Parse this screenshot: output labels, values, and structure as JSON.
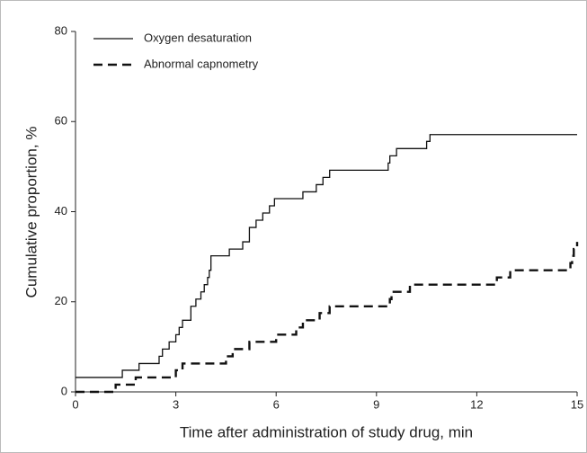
{
  "chart_data": {
    "type": "line",
    "step": "post",
    "xlabel": "Time after administration of study drug, min",
    "ylabel": "Cumulative proportion, %",
    "xlim": [
      0,
      15
    ],
    "ylim": [
      0,
      80
    ],
    "xticks": [
      0,
      3,
      6,
      9,
      12,
      15
    ],
    "yticks": [
      0,
      20,
      40,
      60,
      80
    ],
    "grid": false,
    "legend": "upper left",
    "series": [
      {
        "name": "Oxygen desaturation",
        "color": "#111111",
        "linestyle": "solid",
        "x": [
          0,
          1.4,
          1.9,
          2.5,
          2.6,
          2.8,
          3.0,
          3.1,
          3.2,
          3.45,
          3.6,
          3.75,
          3.85,
          3.95,
          4.0,
          4.05,
          4.6,
          5.0,
          5.2,
          5.4,
          5.6,
          5.8,
          5.95,
          6.8,
          7.2,
          7.4,
          7.6,
          9.35,
          9.4,
          9.6,
          10.5,
          10.6,
          15
        ],
        "values": [
          3.2,
          4.8,
          6.3,
          7.9,
          9.5,
          11.1,
          12.7,
          14.3,
          15.9,
          19.0,
          20.6,
          22.2,
          23.8,
          25.4,
          27.0,
          30.2,
          31.7,
          33.3,
          36.5,
          38.1,
          39.7,
          41.3,
          42.9,
          44.4,
          46.0,
          47.6,
          49.2,
          50.8,
          52.4,
          54.0,
          55.6,
          57.1,
          57.1
        ]
      },
      {
        "name": "Abnormal capnometry",
        "color": "#111111",
        "linestyle": "dashed",
        "x": [
          0,
          1.2,
          1.8,
          3.0,
          3.2,
          4.5,
          4.7,
          5.2,
          6.0,
          6.6,
          6.8,
          7.3,
          7.6,
          9.4,
          9.45,
          10.0,
          12.6,
          13.0,
          14.8,
          14.85,
          14.9,
          15
        ],
        "values": [
          0,
          1.6,
          3.2,
          4.8,
          6.3,
          7.9,
          9.5,
          11.1,
          12.7,
          14.3,
          15.9,
          17.5,
          19.0,
          20.6,
          22.2,
          23.8,
          25.4,
          27.0,
          28.6,
          30.2,
          31.7,
          33.3
        ]
      }
    ]
  }
}
